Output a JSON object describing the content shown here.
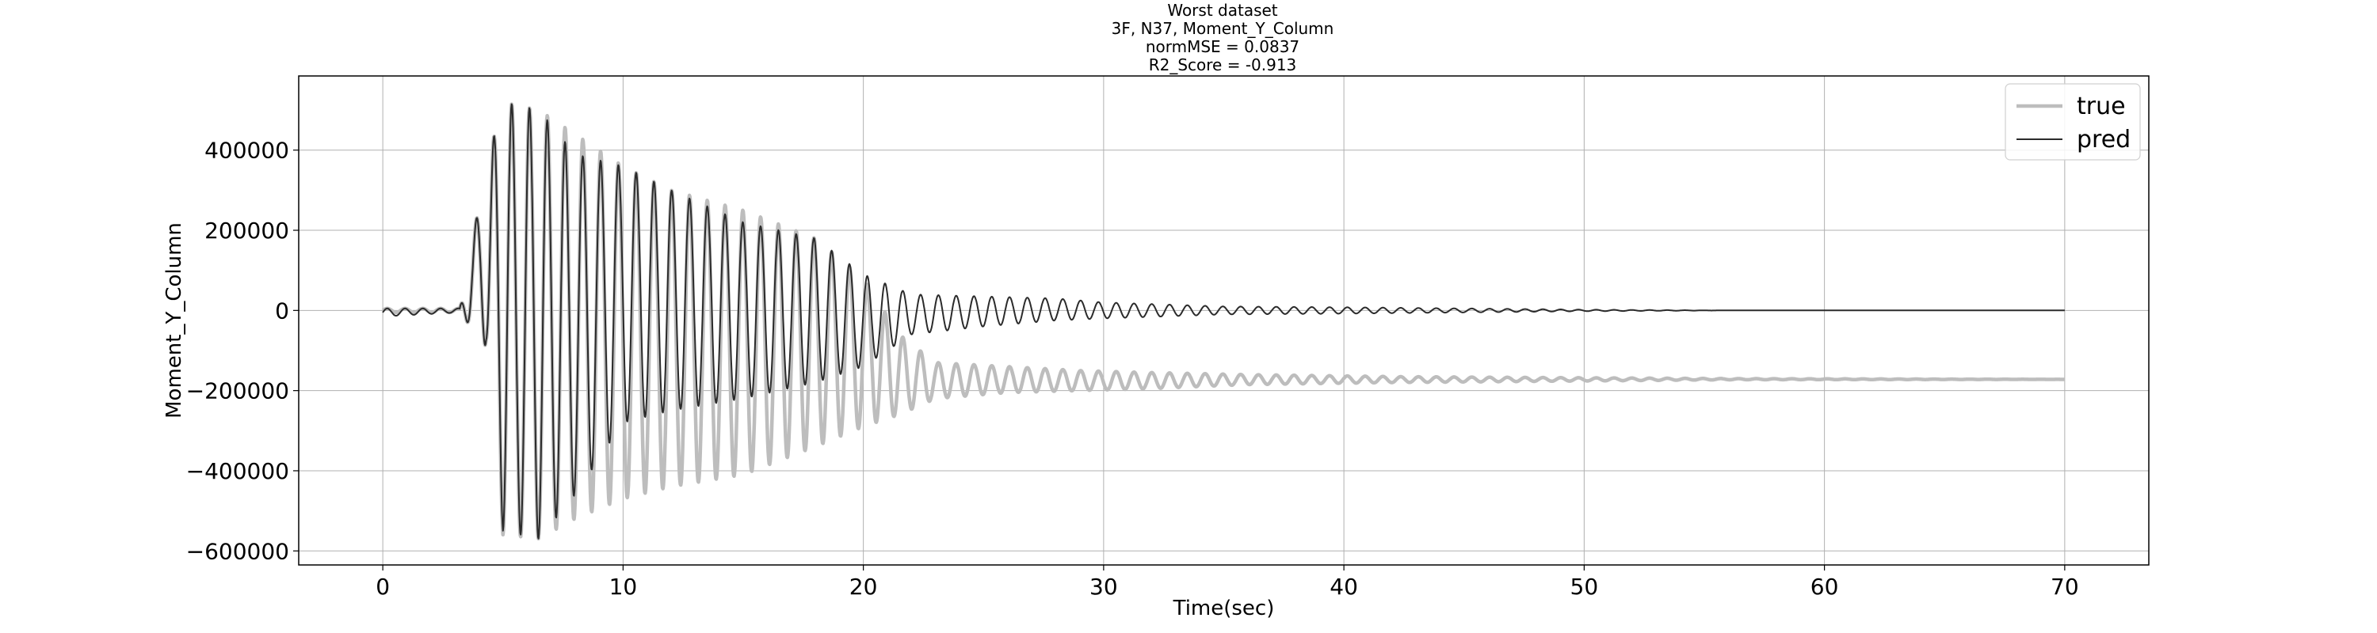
{
  "chart_data": {
    "type": "line",
    "title_lines": [
      "Worst dataset",
      "3F, N37, Moment_Y_Column",
      "normMSE = 0.0837",
      "R2_Score = -0.913"
    ],
    "xlabel": "Time(sec)",
    "ylabel": "Moment_Y_Column",
    "xlim": [
      -3.5,
      73.5
    ],
    "ylim": [
      -635000,
      585000
    ],
    "xticks": [
      0,
      10,
      20,
      30,
      40,
      50,
      60,
      70
    ],
    "xtick_labels": [
      "0",
      "10",
      "20",
      "30",
      "40",
      "50",
      "60",
      "70"
    ],
    "yticks": [
      -600000,
      -400000,
      -200000,
      0,
      200000,
      400000
    ],
    "ytick_labels": [
      "−600000",
      "−400000",
      "−200000",
      "0",
      "200000",
      "400000"
    ],
    "grid": true,
    "legend_position": "top-right",
    "series": [
      {
        "name": "true",
        "color": "#bdbdbd",
        "oscillation_period_sec": 0.74,
        "envelope": {
          "t": [
            0,
            3.2,
            4.3,
            5.0,
            6.5,
            8.0,
            10.0,
            12.0,
            15.0,
            18.0,
            20.0,
            21.5,
            23.0,
            26.0,
            29.0,
            32.0,
            36.0,
            42.0,
            50.0,
            56.0,
            70.0
          ],
          "upper": [
            5000,
            5000,
            360000,
            520000,
            500000,
            440000,
            360000,
            300000,
            250000,
            180000,
            80000,
            -60000,
            -130000,
            -140000,
            -150000,
            -155000,
            -160000,
            -165000,
            -168000,
            -170000,
            -172000
          ],
          "lower": [
            -5000,
            -5000,
            -90000,
            -560000,
            -570000,
            -520000,
            -470000,
            -440000,
            -410000,
            -340000,
            -290000,
            -260000,
            -220000,
            -205000,
            -200000,
            -195000,
            -185000,
            -180000,
            -176000,
            -173000,
            -172000
          ]
        }
      },
      {
        "name": "pred",
        "color": "#2b2b2b",
        "oscillation_period_sec": 0.74,
        "envelope": {
          "t": [
            0,
            3.2,
            4.3,
            5.0,
            6.5,
            8.0,
            10.0,
            12.0,
            15.0,
            18.0,
            20.0,
            22.0,
            25.0,
            28.0,
            30.0,
            35.0,
            40.0,
            45.0,
            50.0,
            56.0,
            70.0
          ],
          "upper": [
            5000,
            5000,
            360000,
            520000,
            500000,
            390000,
            360000,
            300000,
            220000,
            180000,
            90000,
            40000,
            35000,
            30000,
            20000,
            10000,
            8000,
            5000,
            2000,
            0,
            0
          ],
          "lower": [
            -15000,
            -5000,
            -90000,
            -550000,
            -570000,
            -460000,
            -280000,
            -250000,
            -220000,
            -180000,
            -140000,
            -60000,
            -40000,
            -25000,
            -20000,
            -10000,
            -8000,
            -5000,
            -2000,
            0,
            0
          ]
        }
      }
    ]
  }
}
